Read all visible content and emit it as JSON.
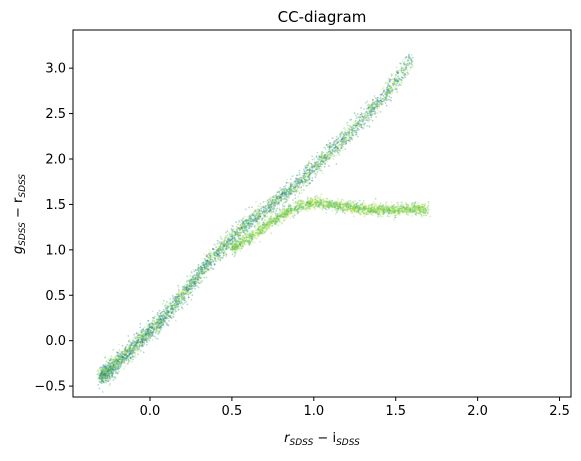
{
  "chart_data": {
    "type": "scatter",
    "title": "CC-diagram",
    "xlabel": {
      "main": "r",
      "sub1": "SDSS",
      "mid": " − i",
      "sub2": "SDSS"
    },
    "ylabel": {
      "main": "g",
      "sub1": "SDSS",
      "mid": " − r",
      "sub2": "SDSS"
    },
    "xlim": [
      -0.47,
      2.57
    ],
    "ylim": [
      -0.62,
      3.42
    ],
    "xticks": [
      0.0,
      0.5,
      1.0,
      1.5,
      2.0,
      2.5
    ],
    "xtick_labels": [
      "0.0",
      "0.5",
      "1.0",
      "1.5",
      "2.0",
      "2.5"
    ],
    "yticks": [
      -0.5,
      0.0,
      0.5,
      1.0,
      1.5,
      2.0,
      2.5,
      3.0
    ],
    "ytick_labels": [
      "−0.5",
      "0.0",
      "0.5",
      "1.0",
      "1.5",
      "2.0",
      "2.5",
      "3.0"
    ],
    "grid": false,
    "colormap": [
      "#2a788e",
      "#22a884",
      "#7ad151",
      "#bddf26"
    ],
    "point_alpha": 0.35,
    "series": [
      {
        "x": [
          -0.3,
          -0.2,
          -0.1,
          0.0,
          0.1,
          0.2,
          0.3,
          0.4,
          0.5,
          0.6,
          0.7,
          0.8,
          0.9,
          1.0,
          1.1,
          1.2,
          1.3,
          1.4,
          1.5,
          1.6
        ],
        "y": [
          -0.4,
          -0.25,
          -0.07,
          0.1,
          0.28,
          0.5,
          0.73,
          0.95,
          1.13,
          1.3,
          1.43,
          1.58,
          1.72,
          1.9,
          2.07,
          2.25,
          2.45,
          2.62,
          2.85,
          3.1
        ],
        "spread": 0.1
      },
      {
        "x": [
          0.5,
          0.6,
          0.7,
          0.8,
          0.9,
          1.0,
          1.1,
          1.2,
          1.3,
          1.4,
          1.5,
          1.6,
          1.7
        ],
        "y": [
          1.0,
          1.12,
          1.25,
          1.38,
          1.47,
          1.52,
          1.5,
          1.47,
          1.45,
          1.44,
          1.44,
          1.45,
          1.45
        ],
        "spread": 0.06
      }
    ]
  }
}
